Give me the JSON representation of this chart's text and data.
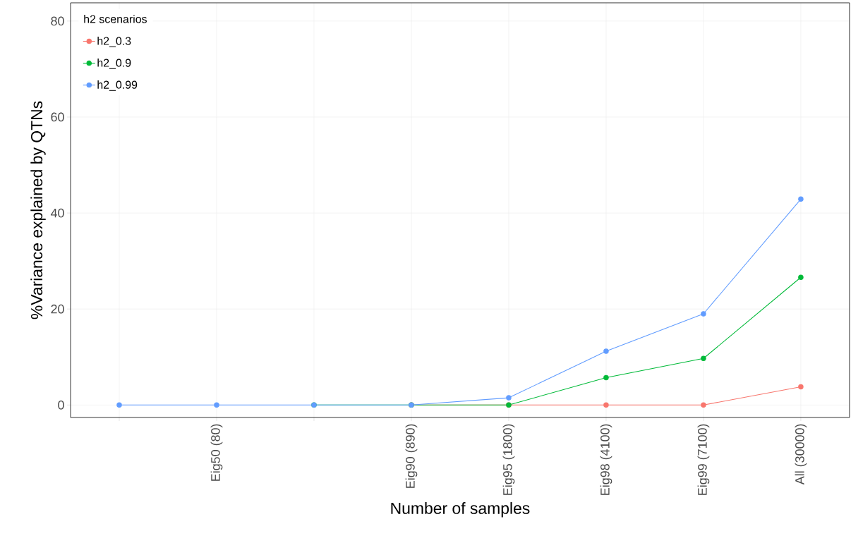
{
  "chart_data": {
    "type": "line",
    "xlabel": "Number of samples",
    "ylabel": "%Variance explained by QTNs",
    "legend_title": "h2 scenarios",
    "categories": [
      null,
      "Eig50 (80)",
      null,
      "Eig90 (890)",
      "Eig95 (1800)",
      "Eig98 (4100)",
      "Eig99 (7100)",
      "All (30000)"
    ],
    "series": [
      {
        "name": "h2_0.3",
        "color": "#f8766d",
        "values": [
          null,
          null,
          null,
          0,
          0,
          0,
          0,
          3.8
        ]
      },
      {
        "name": "h2_0.9",
        "color": "#00ba38",
        "values": [
          null,
          null,
          0,
          0,
          0,
          5.7,
          9.7,
          26.6
        ]
      },
      {
        "name": "h2_0.99",
        "color": "#619cff",
        "values": [
          0,
          0,
          0,
          0,
          1.5,
          11.2,
          19.0,
          42.9
        ]
      }
    ],
    "ylim": [
      -2.6,
      83.8
    ],
    "yticks": [
      0,
      20,
      40,
      60,
      80
    ],
    "grid": true,
    "legend": "top left",
    "marker": "circle"
  }
}
